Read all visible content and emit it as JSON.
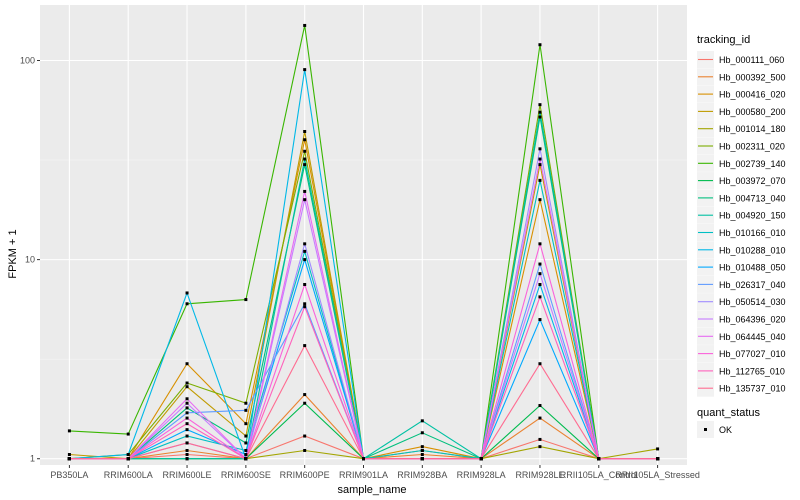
{
  "chart_data": {
    "type": "line",
    "xlabel": "sample_name",
    "ylabel": "FPKM + 1",
    "y_scale": "log10",
    "ylim": [
      0.93,
      190
    ],
    "y_ticks": [
      1,
      10,
      100
    ],
    "y_tick_labels": [
      "1",
      "10",
      "100"
    ],
    "grid": true,
    "legend_position": "right",
    "categories": [
      "PB350LA",
      "RRIM600LA",
      "RRIM600LE",
      "RRIM600SE",
      "RRIM600PE",
      "RRIM901LA",
      "RRIM928BA",
      "RRIM928LA",
      "RRIM928LE",
      "RRII105LA_Control",
      "RRII105LA_Stressed"
    ],
    "legend_title": "tracking_id",
    "series": [
      {
        "name": "Hb_000111_060",
        "color": "#F8766D",
        "values": [
          1.0,
          1.0,
          1.05,
          1.0,
          1.3,
          1.0,
          1.0,
          1.0,
          1.25,
          1.0,
          1.0
        ]
      },
      {
        "name": "Hb_000392_500",
        "color": "#EA8331",
        "values": [
          1.0,
          1.0,
          1.1,
          1.0,
          2.1,
          1.0,
          1.05,
          1.0,
          1.6,
          1.0,
          1.0
        ]
      },
      {
        "name": "Hb_000416_020",
        "color": "#D89000",
        "values": [
          1.0,
          1.0,
          3.0,
          1.5,
          40.0,
          1.0,
          1.15,
          1.0,
          20.0,
          1.0,
          1.0
        ]
      },
      {
        "name": "Hb_000580_200",
        "color": "#C09B00",
        "values": [
          1.05,
          1.0,
          2.3,
          1.3,
          44.0,
          1.0,
          1.1,
          1.0,
          30.0,
          1.0,
          1.0
        ]
      },
      {
        "name": "Hb_001014_180",
        "color": "#A3A500",
        "values": [
          1.0,
          1.0,
          1.0,
          1.0,
          1.1,
          1.0,
          1.0,
          1.0,
          1.15,
          1.0,
          1.12
        ]
      },
      {
        "name": "Hb_002311_020",
        "color": "#7CAE00",
        "values": [
          1.0,
          1.05,
          2.4,
          1.9,
          35.0,
          1.0,
          1.0,
          1.0,
          60.0,
          1.0,
          1.0
        ]
      },
      {
        "name": "Hb_002739_140",
        "color": "#39B600",
        "values": [
          1.38,
          1.33,
          6.0,
          6.3,
          150.0,
          1.0,
          1.0,
          1.0,
          120.0,
          1.0,
          1.0
        ]
      },
      {
        "name": "Hb_003972_070",
        "color": "#00BB4E",
        "values": [
          1.0,
          1.0,
          1.0,
          1.0,
          1.9,
          1.0,
          1.0,
          1.0,
          1.85,
          1.0,
          1.0
        ]
      },
      {
        "name": "Hb_004713_040",
        "color": "#00BF7D",
        "values": [
          1.0,
          1.0,
          1.8,
          1.2,
          30.0,
          1.0,
          1.35,
          1.0,
          52.0,
          1.0,
          1.0
        ]
      },
      {
        "name": "Hb_004920_150",
        "color": "#00C1A3",
        "values": [
          1.0,
          1.0,
          1.0,
          1.0,
          32.0,
          1.0,
          1.55,
          1.0,
          55.0,
          1.0,
          1.0
        ]
      },
      {
        "name": "Hb_010166_010",
        "color": "#00BFC4",
        "values": [
          1.0,
          1.0,
          1.3,
          1.1,
          11.0,
          1.0,
          1.1,
          1.0,
          25.0,
          1.0,
          1.0
        ]
      },
      {
        "name": "Hb_010288_010",
        "color": "#00B8E7",
        "values": [
          1.0,
          1.05,
          6.8,
          1.0,
          90.0,
          1.0,
          1.0,
          1.0,
          7.5,
          1.0,
          1.0
        ]
      },
      {
        "name": "Hb_010488_050",
        "color": "#00A9FF",
        "values": [
          1.0,
          1.0,
          1.4,
          1.05,
          10.0,
          1.0,
          1.0,
          1.0,
          5.0,
          1.0,
          1.0
        ]
      },
      {
        "name": "Hb_026317_040",
        "color": "#619CFF",
        "values": [
          1.0,
          1.0,
          1.7,
          1.75,
          6.0,
          1.0,
          1.0,
          1.0,
          9.5,
          1.0,
          1.0
        ]
      },
      {
        "name": "Hb_050514_030",
        "color": "#9F8CFF",
        "values": [
          1.0,
          1.0,
          1.2,
          1.0,
          12.0,
          1.0,
          1.0,
          1.0,
          36.0,
          1.0,
          1.0
        ]
      },
      {
        "name": "Hb_064396_020",
        "color": "#C77CFF",
        "values": [
          1.0,
          1.0,
          1.9,
          1.0,
          20.0,
          1.0,
          1.0,
          1.0,
          8.5,
          1.0,
          1.0
        ]
      },
      {
        "name": "Hb_064445_040",
        "color": "#E76BF3",
        "values": [
          1.0,
          1.0,
          2.0,
          1.0,
          22.0,
          1.0,
          1.0,
          1.0,
          32.0,
          1.0,
          1.0
        ]
      },
      {
        "name": "Hb_077027_010",
        "color": "#FA62DB",
        "values": [
          1.0,
          1.0,
          1.6,
          1.0,
          7.5,
          1.0,
          1.0,
          1.0,
          12.0,
          1.0,
          1.0
        ]
      },
      {
        "name": "Hb_112765_010",
        "color": "#FF62BC",
        "values": [
          1.0,
          1.0,
          1.5,
          1.0,
          5.8,
          1.0,
          1.0,
          1.0,
          6.5,
          1.0,
          1.0
        ]
      },
      {
        "name": "Hb_135737_010",
        "color": "#FF6C91",
        "values": [
          1.0,
          1.0,
          1.2,
          1.0,
          3.7,
          1.0,
          1.0,
          1.0,
          3.0,
          1.0,
          1.0
        ]
      }
    ],
    "shape_legend_title": "quant_status",
    "shape_legend_items": [
      "OK"
    ]
  }
}
